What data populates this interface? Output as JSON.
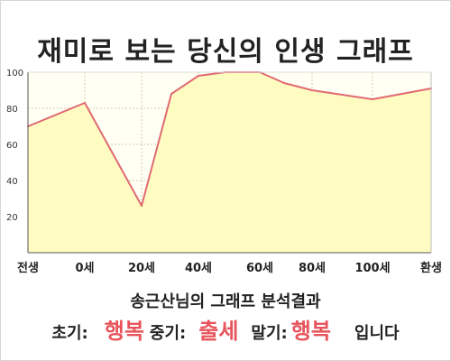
{
  "title": "재미로 보는 당신의 인생 그래프",
  "chart_data": {
    "type": "area",
    "title": "재미로 보는 당신의 인생 그래프",
    "x_labels": [
      "전생",
      "0세",
      "20세",
      "40세",
      "60세",
      "80세",
      "100세",
      "환생"
    ],
    "y_ticks": [
      20,
      40,
      60,
      80,
      100
    ],
    "ylim": [
      0,
      100
    ],
    "series": [
      {
        "values": [
          {
            "x": "전생",
            "y": 70
          },
          {
            "x": "0세",
            "y": 83
          },
          {
            "x": "20세",
            "y": 26
          },
          {
            "x": "30세",
            "y": 88
          },
          {
            "x": "40세",
            "y": 98
          },
          {
            "x": "50세",
            "y": 100
          },
          {
            "x": "60세",
            "y": 100
          },
          {
            "x": "70세",
            "y": 94
          },
          {
            "x": "80세",
            "y": 90
          },
          {
            "x": "100세",
            "y": 85
          },
          {
            "x": "환생",
            "y": 91
          }
        ]
      }
    ],
    "grid": true,
    "colors": {
      "fill": "#fffcc2",
      "line": "#e06a72",
      "plot_bg": "#fffff4",
      "grid": "#ccccaa"
    }
  },
  "caption": "송근산님의 그래프 분석결과",
  "result": {
    "early_label": "초기:",
    "early_value": "행복",
    "mid_label": "중기:",
    "mid_value": "출세",
    "late_label": "말기:",
    "late_value": "행복",
    "ending": "입니다"
  }
}
